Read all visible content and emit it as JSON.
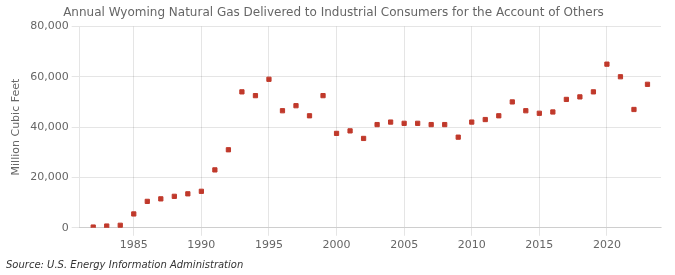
{
  "chart_data": {
    "type": "scatter",
    "title": "Annual Wyoming Natural Gas Delivered to Industrial Consumers for the Account of Others",
    "ylabel": "Million Cubic Feet",
    "source": "Source: U.S. Energy Information Administration",
    "x": [
      1982,
      1983,
      1984,
      1985,
      1986,
      1987,
      1988,
      1989,
      1990,
      1991,
      1992,
      1993,
      1994,
      1995,
      1996,
      1997,
      1998,
      1999,
      2000,
      2001,
      2002,
      2003,
      2004,
      2005,
      2006,
      2007,
      2008,
      2009,
      2010,
      2011,
      2012,
      2013,
      2014,
      2015,
      2016,
      2017,
      2018,
      2019,
      2020,
      2021,
      2022,
      2023
    ],
    "values": [
      300,
      700,
      1000,
      5500,
      10500,
      11500,
      12500,
      13500,
      14500,
      23000,
      31000,
      54000,
      52500,
      59000,
      46500,
      48500,
      44500,
      52500,
      37500,
      38500,
      35500,
      41000,
      42000,
      41500,
      41500,
      41000,
      41000,
      36000,
      42000,
      43000,
      44500,
      50000,
      46500,
      45500,
      46000,
      51000,
      52000,
      54000,
      65000,
      60000,
      47000,
      57000
    ],
    "color": "#c0392b",
    "marker": "square",
    "xlim": [
      1981,
      2024
    ],
    "xticks": [
      1985,
      1990,
      1995,
      2000,
      2005,
      2010,
      2015,
      2020
    ],
    "ylim": [
      0,
      80000
    ],
    "yticks": [
      0,
      {
        "value": 20000,
        "label": "20,000"
      },
      {
        "value": 40000,
        "label": "40,000"
      },
      {
        "value": 60000,
        "label": "60,000"
      },
      {
        "value": 80000,
        "label": "80,000"
      }
    ],
    "grid": true
  }
}
